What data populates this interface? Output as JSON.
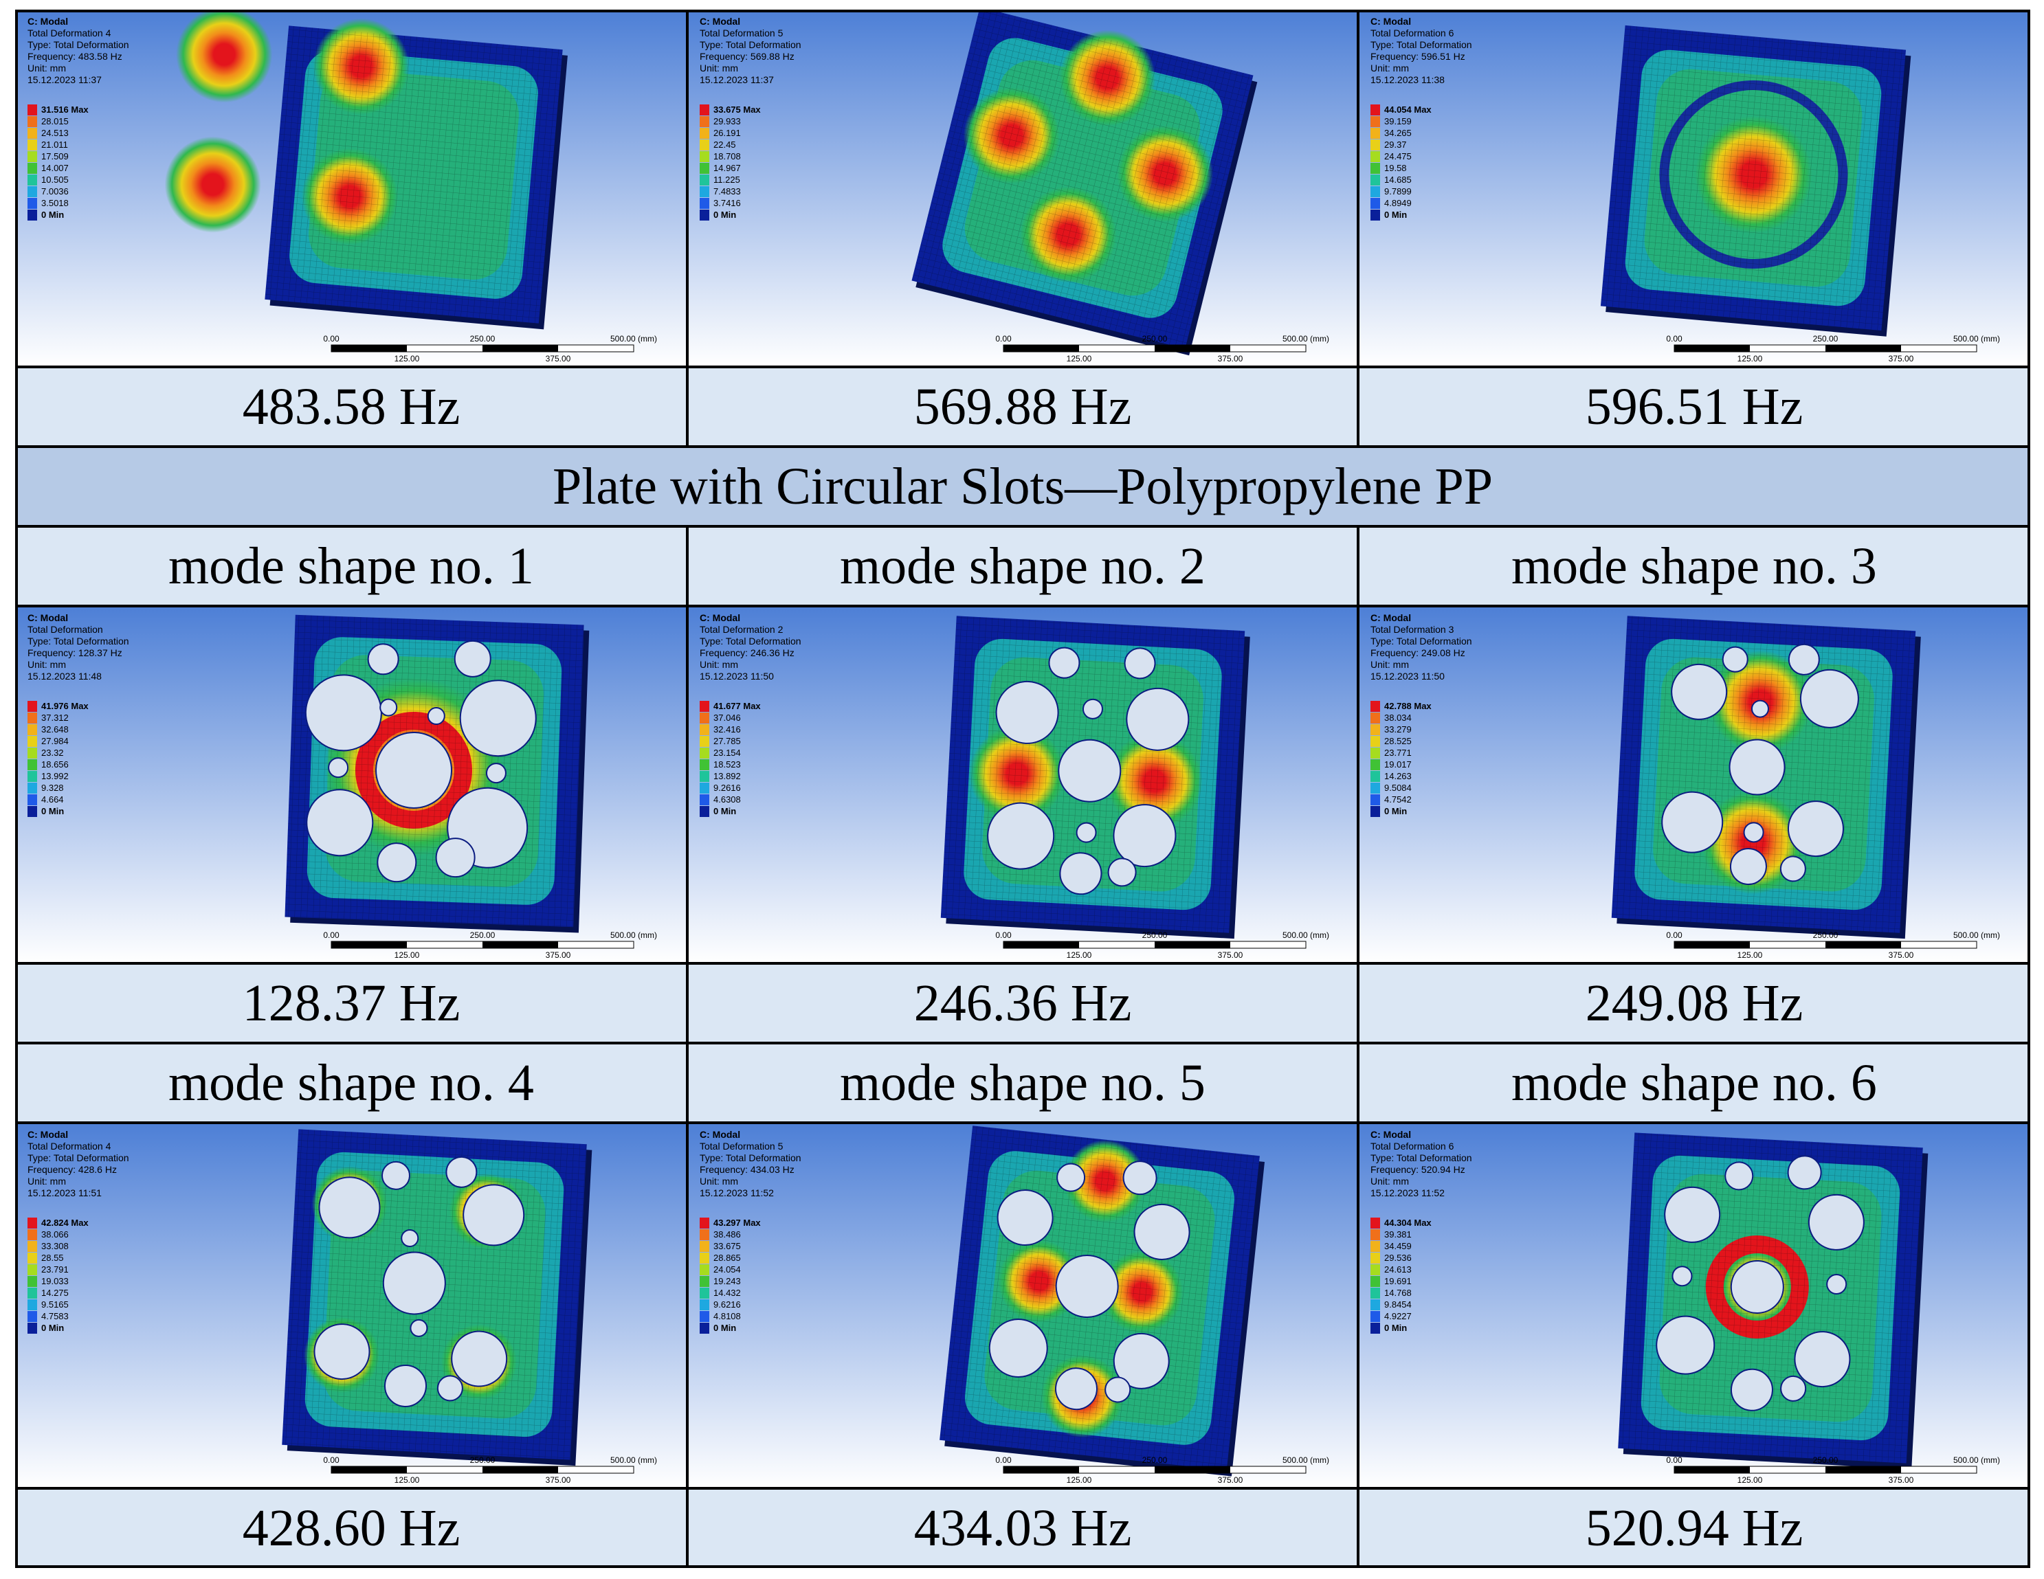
{
  "table": {
    "title": "Plate with Circular Slots—Polypropylene PP",
    "top_freqs": [
      "483.58 Hz",
      "569.88 Hz",
      "596.51 Hz"
    ],
    "mode_labels": [
      "mode shape no. 1",
      "mode shape no. 2",
      "mode shape no. 3",
      "mode shape no. 4",
      "mode shape no. 5",
      "mode shape no. 6"
    ],
    "slotted_freqs": [
      "128.37 Hz",
      "246.36 Hz",
      "249.08 Hz",
      "428.60 Hz",
      "434.03 Hz",
      "520.94 Hz"
    ]
  },
  "colors": {
    "text_cell_bg": "#dbe7f4",
    "title_bg": "#b6cae6",
    "viewport_top": "#4d7fd6",
    "viewport_bottom": "#ffffff",
    "plate_base": "#0a1f9a",
    "deformation_max": "#e3141c",
    "deformation_mid": "#e8d018",
    "deformation_low": "#2fb84f"
  },
  "panels": [
    {
      "header": "C: Modal",
      "result": "Total Deformation 4",
      "type": "Type: Total Deformation",
      "freq": "Frequency: 483.58 Hz",
      "unit": "Unit: mm",
      "date": "15.12.2023 11:37",
      "legend": [
        "31.516 Max",
        "28.015",
        "24.513",
        "21.011",
        "17.509",
        "14.007",
        "10.505",
        "7.0036",
        "3.5018",
        "0 Min"
      ],
      "pattern": "four-lobe"
    },
    {
      "header": "C: Modal",
      "result": "Total Deformation 5",
      "type": "Type: Total Deformation",
      "freq": "Frequency: 569.88 Hz",
      "unit": "Unit: mm",
      "date": "15.12.2023 11:37",
      "legend": [
        "33.675 Max",
        "29.933",
        "26.191",
        "22.45",
        "18.708",
        "14.967",
        "11.225",
        "7.4833",
        "3.7416",
        "0 Min"
      ],
      "pattern": "four-lobe-diagonal"
    },
    {
      "header": "C: Modal",
      "result": "Total Deformation 6",
      "type": "Type: Total Deformation",
      "freq": "Frequency: 596.51 Hz",
      "unit": "Unit: mm",
      "date": "15.12.2023 11:38",
      "legend": [
        "44.054 Max",
        "39.159",
        "34.265",
        "29.37",
        "24.475",
        "19.58",
        "14.685",
        "9.7899",
        "4.8949",
        "0 Min"
      ],
      "pattern": "center-ring"
    },
    {
      "header": "C: Modal",
      "result": "Total Deformation",
      "type": "Type: Total Deformation",
      "freq": "Frequency: 128.37 Hz",
      "unit": "Unit: mm",
      "date": "15.12.2023 11:48",
      "legend": [
        "41.976 Max",
        "37.312",
        "32.648",
        "27.984",
        "23.32",
        "18.656",
        "13.992",
        "9.328",
        "4.664",
        "0 Min"
      ],
      "pattern": "slots-center"
    },
    {
      "header": "C: Modal",
      "result": "Total Deformation 2",
      "type": "Type: Total Deformation",
      "freq": "Frequency: 246.36 Hz",
      "unit": "Unit: mm",
      "date": "15.12.2023 11:50",
      "legend": [
        "41.677 Max",
        "37.046",
        "32.416",
        "27.785",
        "23.154",
        "18.523",
        "13.892",
        "9.2616",
        "4.6308",
        "0 Min"
      ],
      "pattern": "slots-two-vertical"
    },
    {
      "header": "C: Modal",
      "result": "Total Deformation 3",
      "type": "Type: Total Deformation",
      "freq": "Frequency: 249.08 Hz",
      "unit": "Unit: mm",
      "date": "15.12.2023 11:50",
      "legend": [
        "42.788 Max",
        "38.034",
        "33.279",
        "28.525",
        "23.771",
        "19.017",
        "14.263",
        "9.5084",
        "4.7542",
        "0 Min"
      ],
      "pattern": "slots-two-horizontal"
    },
    {
      "header": "C: Modal",
      "result": "Total Deformation 4",
      "type": "Type: Total Deformation",
      "freq": "Frequency: 428.6 Hz",
      "unit": "Unit: mm",
      "date": "15.12.2023 11:51",
      "legend": [
        "42.824 Max",
        "38.066",
        "33.308",
        "28.55",
        "23.791",
        "19.033",
        "14.275",
        "9.5165",
        "4.7583",
        "0 Min"
      ],
      "pattern": "slots-four"
    },
    {
      "header": "C: Modal",
      "result": "Total Deformation 5",
      "type": "Type: Total Deformation",
      "freq": "Frequency: 434.03 Hz",
      "unit": "Unit: mm",
      "date": "15.12.2023 11:52",
      "legend": [
        "43.297 Max",
        "38.486",
        "33.675",
        "28.865",
        "24.054",
        "19.243",
        "14.432",
        "9.6216",
        "4.8108",
        "0 Min"
      ],
      "pattern": "slots-three-band"
    },
    {
      "header": "C: Modal",
      "result": "Total Deformation 6",
      "type": "Type: Total Deformation",
      "freq": "Frequency: 520.94 Hz",
      "unit": "Unit: mm",
      "date": "15.12.2023 11:52",
      "legend": [
        "44.304 Max",
        "39.381",
        "34.459",
        "29.536",
        "24.613",
        "19.691",
        "14.768",
        "9.8454",
        "4.9227",
        "0 Min"
      ],
      "pattern": "slots-center-ring"
    }
  ],
  "scale_bar": {
    "labels_top": [
      "0.00",
      "250.00",
      "500.00 (mm)"
    ],
    "labels_bottom": [
      "125.00",
      "375.00"
    ]
  }
}
